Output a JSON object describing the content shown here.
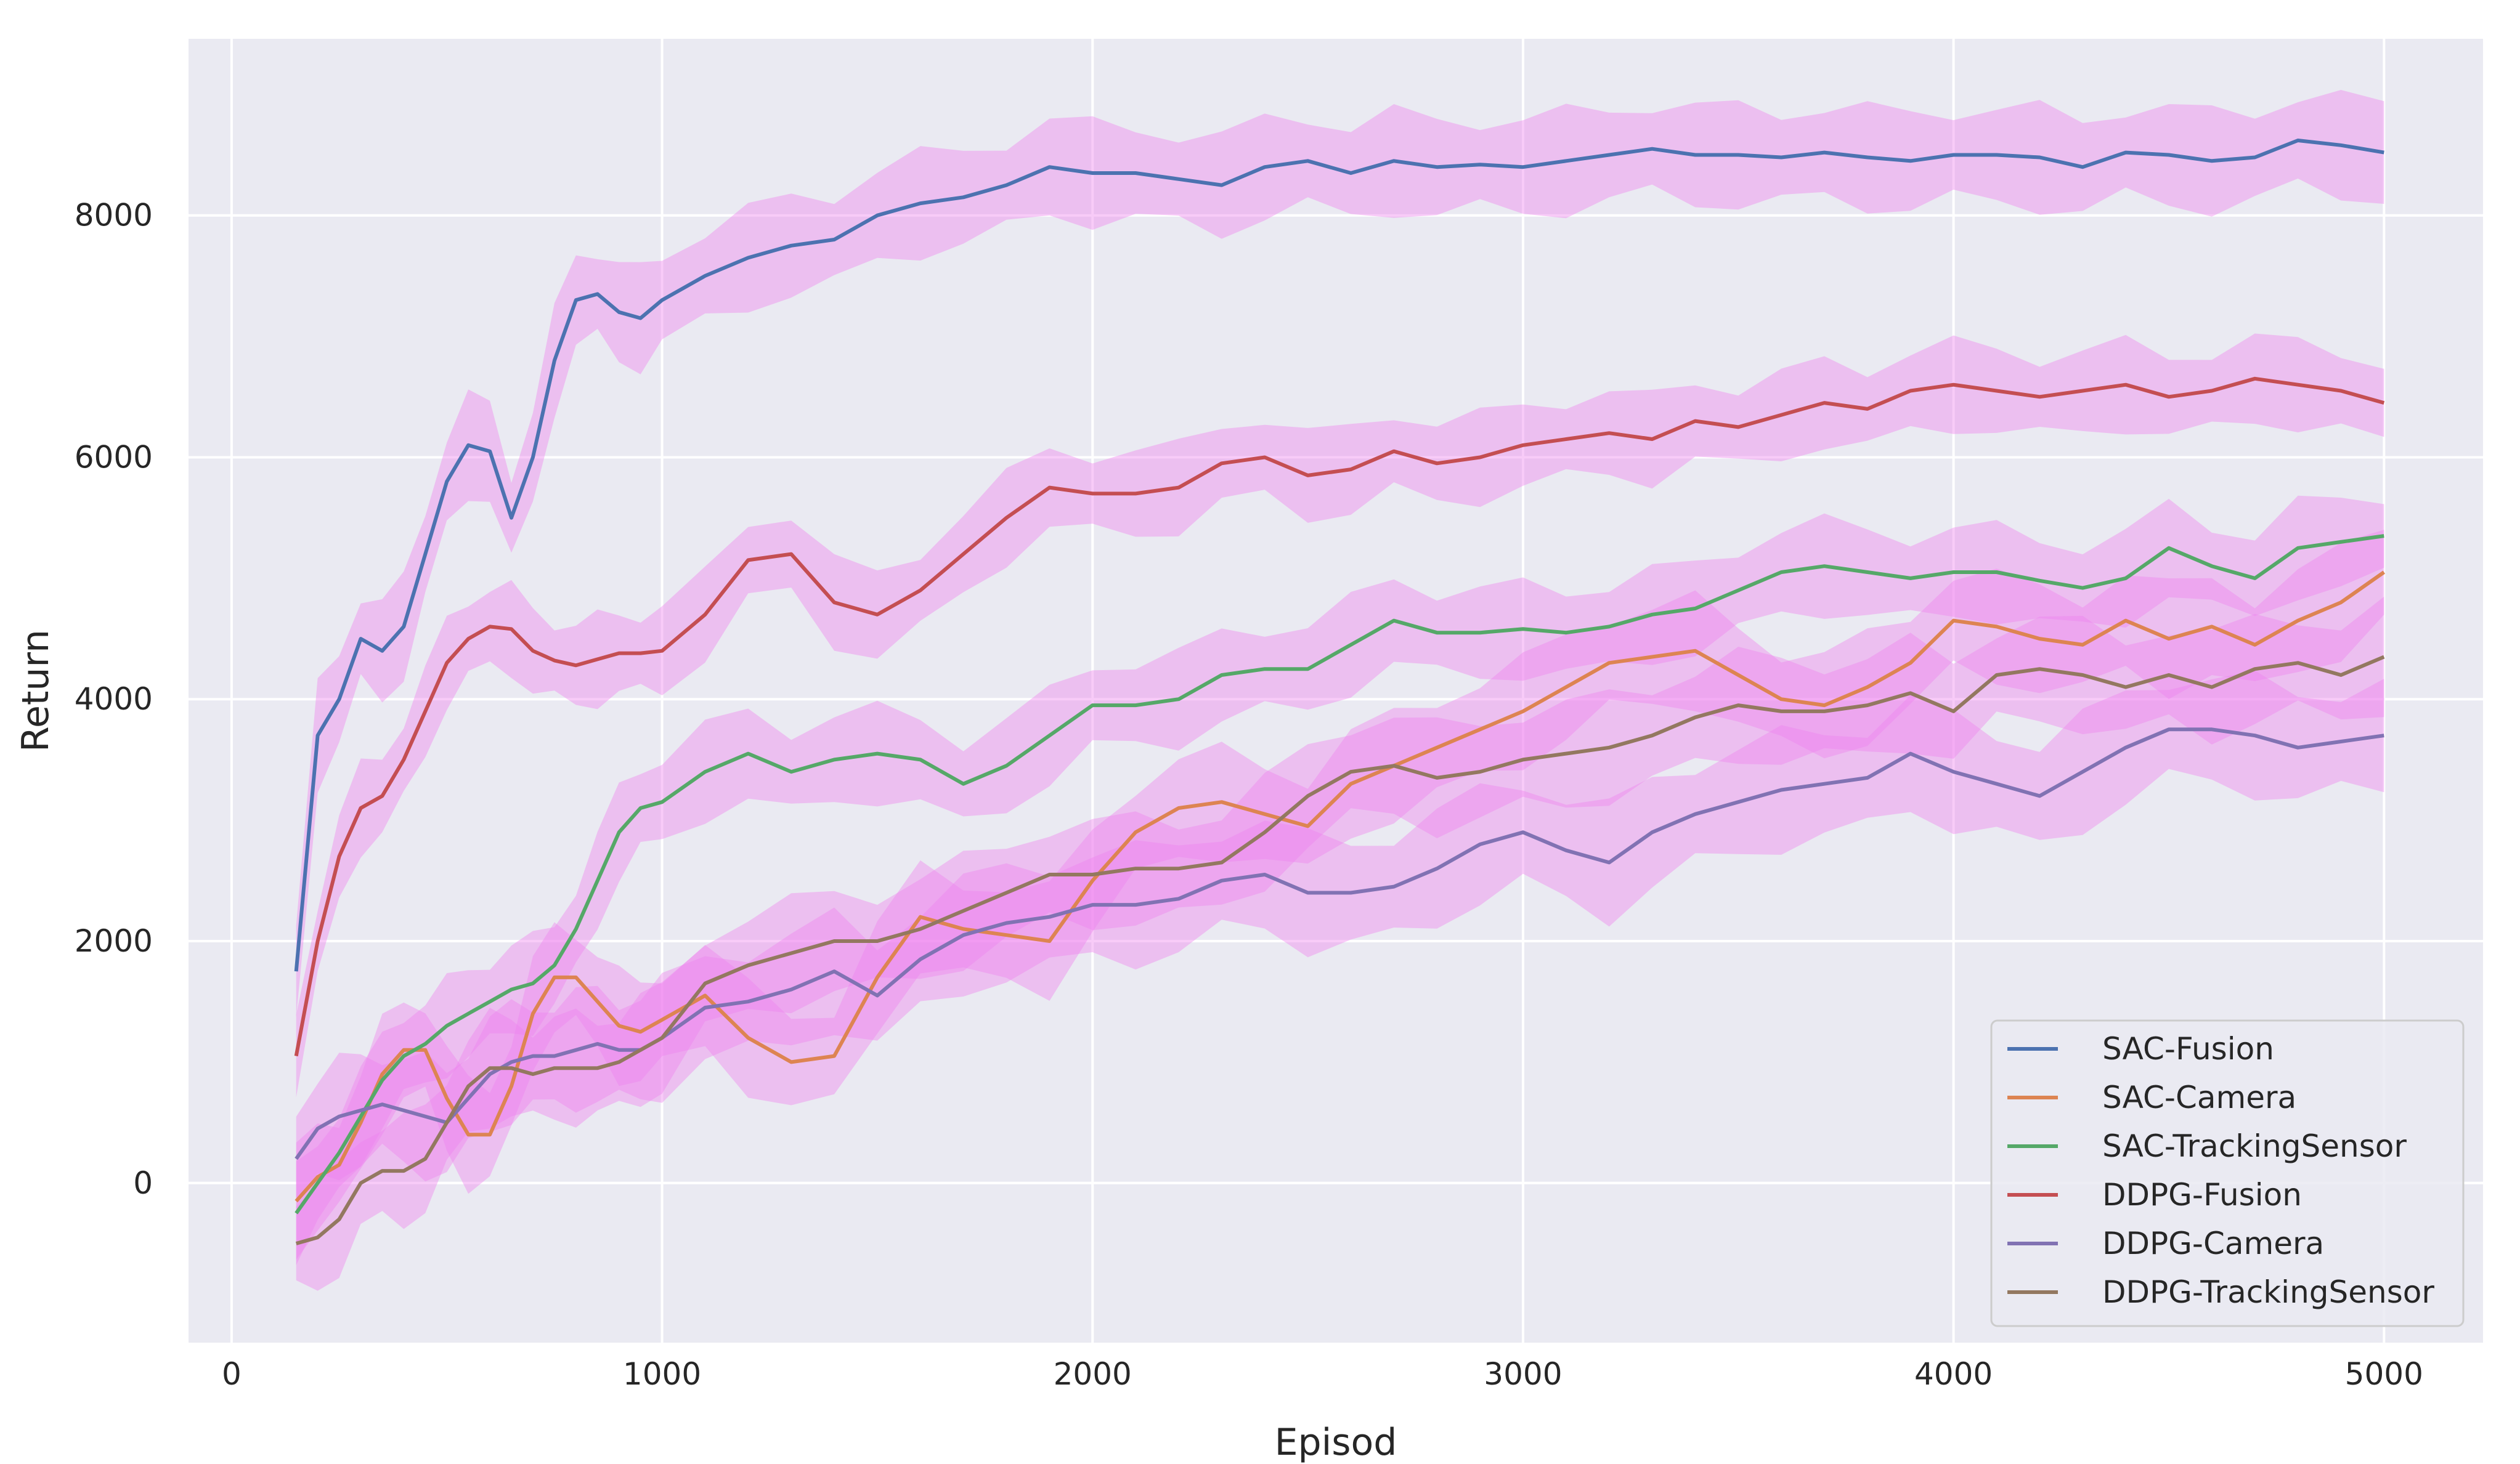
{
  "chart_data": {
    "type": "line",
    "title": "",
    "xlabel": "Episod",
    "ylabel": "Return",
    "xlim": [
      -100,
      5230
    ],
    "ylim": [
      -1320,
      9460
    ],
    "xticks": [
      0,
      1000,
      2000,
      3000,
      4000,
      5000
    ],
    "yticks": [
      0,
      2000,
      4000,
      6000,
      8000
    ],
    "grid": true,
    "legend_position": "lower-right",
    "band_color": "#ee82ee",
    "series": [
      {
        "name": "SAC-Fusion",
        "color": "#4c72b0",
        "band": 380,
        "x": [
          150,
          200,
          250,
          300,
          350,
          400,
          450,
          500,
          550,
          600,
          650,
          700,
          750,
          800,
          850,
          900,
          950,
          1000,
          1100,
          1200,
          1300,
          1400,
          1500,
          1600,
          1700,
          1800,
          1900,
          2000,
          2100,
          2200,
          2300,
          2400,
          2500,
          2600,
          2700,
          2800,
          2900,
          3000,
          3100,
          3200,
          3300,
          3400,
          3500,
          3600,
          3700,
          3800,
          3900,
          4000,
          4100,
          4200,
          4300,
          4400,
          4500,
          4600,
          4700,
          4800,
          4900,
          5000
        ],
        "y": [
          1750,
          3700,
          4000,
          4500,
          4400,
          4600,
          5200,
          5800,
          6100,
          6050,
          5500,
          6000,
          6800,
          7300,
          7350,
          7200,
          7150,
          7300,
          7500,
          7650,
          7750,
          7800,
          8000,
          8100,
          8150,
          8250,
          8400,
          8350,
          8350,
          8300,
          8250,
          8400,
          8450,
          8350,
          8450,
          8400,
          8420,
          8400,
          8450,
          8500,
          8550,
          8500,
          8500,
          8480,
          8520,
          8480,
          8450,
          8500,
          8500,
          8480,
          8400,
          8520,
          8500,
          8450,
          8480,
          8620,
          8580,
          8520
        ]
      },
      {
        "name": "SAC-Camera",
        "color": "#dd8452",
        "band": 400,
        "x": [
          150,
          200,
          250,
          300,
          350,
          400,
          450,
          500,
          550,
          600,
          650,
          700,
          750,
          800,
          850,
          900,
          950,
          1000,
          1100,
          1200,
          1300,
          1400,
          1500,
          1600,
          1700,
          1800,
          1900,
          2000,
          2100,
          2200,
          2300,
          2400,
          2500,
          2600,
          2700,
          2800,
          2900,
          3000,
          3100,
          3200,
          3300,
          3400,
          3500,
          3600,
          3700,
          3800,
          3900,
          4000,
          4100,
          4200,
          4300,
          4400,
          4500,
          4600,
          4700,
          4800,
          4900,
          5000
        ],
        "y": [
          -150,
          50,
          150,
          500,
          900,
          1100,
          1100,
          700,
          400,
          400,
          800,
          1400,
          1700,
          1700,
          1500,
          1300,
          1250,
          1350,
          1550,
          1200,
          1000,
          1050,
          1700,
          2200,
          2100,
          2050,
          2000,
          2500,
          2900,
          3100,
          3150,
          3050,
          2950,
          3300,
          3450,
          3600,
          3750,
          3900,
          4100,
          4300,
          4350,
          4400,
          4200,
          4000,
          3950,
          4100,
          4300,
          4650,
          4600,
          4500,
          4450,
          4650,
          4500,
          4600,
          4450,
          4650,
          4800,
          5050
        ]
      },
      {
        "name": "SAC-TrackingSensor",
        "color": "#55a868",
        "band": 350,
        "x": [
          150,
          200,
          250,
          300,
          350,
          400,
          450,
          500,
          550,
          600,
          650,
          700,
          750,
          800,
          850,
          900,
          950,
          1000,
          1100,
          1200,
          1300,
          1400,
          1500,
          1600,
          1700,
          1800,
          1900,
          2000,
          2100,
          2200,
          2300,
          2400,
          2500,
          2600,
          2700,
          2800,
          2900,
          3000,
          3100,
          3200,
          3300,
          3400,
          3500,
          3600,
          3700,
          3800,
          3900,
          4000,
          4100,
          4200,
          4300,
          4400,
          4500,
          4600,
          4700,
          4800,
          4900,
          5000
        ],
        "y": [
          -250,
          0,
          250,
          550,
          850,
          1050,
          1150,
          1300,
          1400,
          1500,
          1600,
          1650,
          1800,
          2100,
          2500,
          2900,
          3100,
          3150,
          3400,
          3550,
          3400,
          3500,
          3550,
          3500,
          3300,
          3450,
          3700,
          3950,
          3950,
          4000,
          4200,
          4250,
          4250,
          4450,
          4650,
          4550,
          4550,
          4580,
          4550,
          4600,
          4700,
          4750,
          4900,
          5050,
          5100,
          5050,
          5000,
          5050,
          5050,
          4980,
          4920,
          5000,
          5250,
          5100,
          5000,
          5250,
          5300,
          5350
        ]
      },
      {
        "name": "DDPG-Fusion",
        "color": "#c44e52",
        "band": 330,
        "x": [
          150,
          200,
          250,
          300,
          350,
          400,
          450,
          500,
          550,
          600,
          650,
          700,
          750,
          800,
          850,
          900,
          950,
          1000,
          1100,
          1200,
          1300,
          1400,
          1500,
          1600,
          1700,
          1800,
          1900,
          2000,
          2100,
          2200,
          2300,
          2400,
          2500,
          2600,
          2700,
          2800,
          2900,
          3000,
          3100,
          3200,
          3300,
          3400,
          3500,
          3600,
          3700,
          3800,
          3900,
          4000,
          4100,
          4200,
          4300,
          4400,
          4500,
          4600,
          4700,
          4800,
          4900,
          5000
        ],
        "y": [
          1050,
          2000,
          2700,
          3100,
          3200,
          3500,
          3900,
          4300,
          4500,
          4600,
          4580,
          4400,
          4320,
          4280,
          4330,
          4380,
          4380,
          4400,
          4700,
          5150,
          5200,
          4800,
          4700,
          4900,
          5200,
          5500,
          5750,
          5700,
          5700,
          5750,
          5950,
          6000,
          5850,
          5900,
          6050,
          5950,
          6000,
          6100,
          6150,
          6200,
          6150,
          6300,
          6250,
          6350,
          6450,
          6400,
          6550,
          6600,
          6550,
          6500,
          6550,
          6600,
          6500,
          6550,
          6650,
          6600,
          6550,
          6450
        ]
      },
      {
        "name": "DDPG-Camera",
        "color": "#8172b3",
        "band": 430,
        "x": [
          150,
          200,
          250,
          300,
          350,
          400,
          450,
          500,
          550,
          600,
          650,
          700,
          750,
          800,
          850,
          900,
          950,
          1000,
          1100,
          1200,
          1300,
          1400,
          1500,
          1600,
          1700,
          1800,
          1900,
          2000,
          2100,
          2200,
          2300,
          2400,
          2500,
          2600,
          2700,
          2800,
          2900,
          3000,
          3100,
          3200,
          3300,
          3400,
          3500,
          3600,
          3700,
          3800,
          3900,
          4000,
          4100,
          4200,
          4300,
          4400,
          4500,
          4600,
          4700,
          4800,
          4900,
          5000
        ],
        "y": [
          200,
          450,
          550,
          600,
          650,
          600,
          550,
          500,
          700,
          900,
          1000,
          1050,
          1050,
          1100,
          1150,
          1100,
          1100,
          1200,
          1450,
          1500,
          1600,
          1750,
          1550,
          1850,
          2050,
          2150,
          2200,
          2300,
          2300,
          2350,
          2500,
          2550,
          2400,
          2400,
          2450,
          2600,
          2800,
          2900,
          2750,
          2650,
          2900,
          3050,
          3150,
          3250,
          3300,
          3350,
          3550,
          3400,
          3300,
          3200,
          3400,
          3600,
          3750,
          3750,
          3700,
          3600,
          3650,
          3700
        ]
      },
      {
        "name": "DDPG-TrackingSensor",
        "color": "#937860",
        "band": 400,
        "x": [
          150,
          200,
          250,
          300,
          350,
          400,
          450,
          500,
          550,
          600,
          650,
          700,
          750,
          800,
          850,
          900,
          950,
          1000,
          1100,
          1200,
          1300,
          1400,
          1500,
          1600,
          1700,
          1800,
          1900,
          2000,
          2100,
          2200,
          2300,
          2400,
          2500,
          2600,
          2700,
          2800,
          2900,
          3000,
          3100,
          3200,
          3300,
          3400,
          3500,
          3600,
          3700,
          3800,
          3900,
          4000,
          4100,
          4200,
          4300,
          4400,
          4500,
          4600,
          4700,
          4800,
          4900,
          5000
        ],
        "y": [
          -500,
          -450,
          -300,
          0,
          100,
          100,
          200,
          500,
          800,
          950,
          950,
          900,
          950,
          950,
          950,
          1000,
          1100,
          1200,
          1650,
          1800,
          1900,
          2000,
          2000,
          2100,
          2250,
          2400,
          2550,
          2550,
          2600,
          2600,
          2650,
          2900,
          3200,
          3400,
          3450,
          3350,
          3400,
          3500,
          3550,
          3600,
          3700,
          3850,
          3950,
          3900,
          3900,
          3950,
          4050,
          3900,
          4200,
          4250,
          4200,
          4100,
          4200,
          4100,
          4250,
          4300,
          4200,
          4350
        ]
      }
    ]
  }
}
